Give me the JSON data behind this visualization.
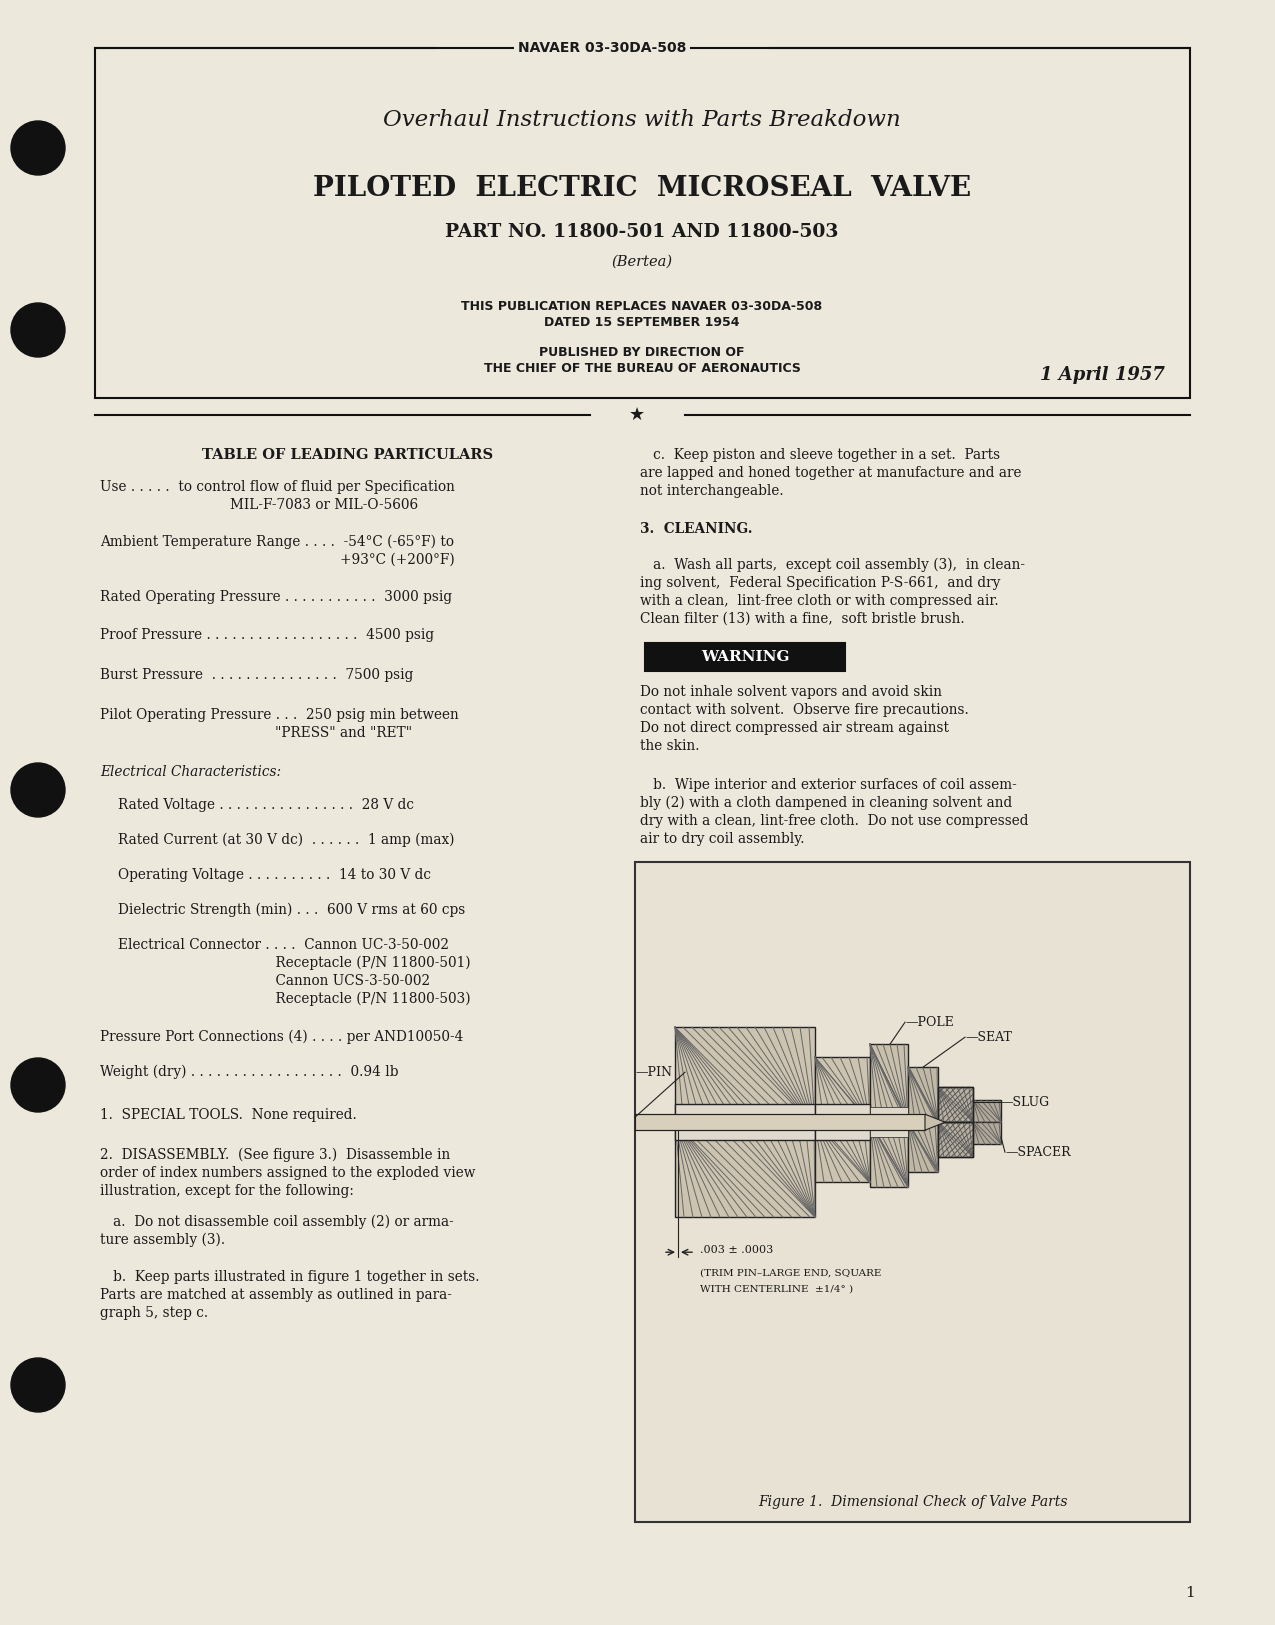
{
  "bg_color": "#ede8dc",
  "text_color": "#1a1a1a",
  "header_doc_num": "NAVAER 03-30DA-508",
  "header_title1": "Overhaul Instructions with Parts Breakdown",
  "header_title2": "PILOTED  ELECTRIC  MICROSEAL  VALVE",
  "header_part": "PART NO. 11800-501 AND 11800-503",
  "header_mfr": "(Bertea)",
  "header_replaces": "THIS PUBLICATION REPLACES NAVAER 03-30DA-508",
  "header_dated": "DATED 15 SEPTEMBER 1954",
  "header_pub1": "PUBLISHED BY DIRECTION OF",
  "header_pub2": "THE CHIEF OF THE BUREAU OF AERONAUTICS",
  "header_date": "1 April 1957",
  "page_num": "1"
}
